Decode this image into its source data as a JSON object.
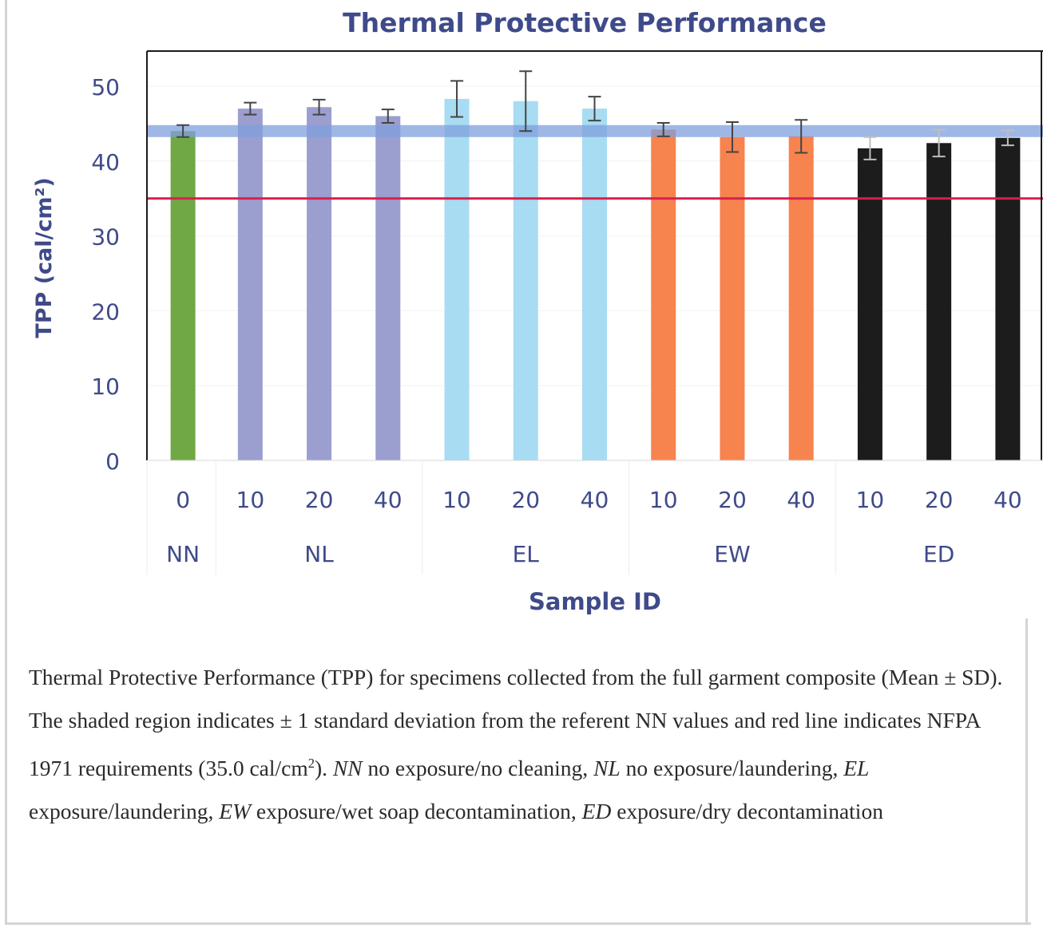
{
  "chart_data": {
    "type": "bar",
    "title": "Thermal Protective Performance",
    "xlabel": "Sample ID",
    "ylabel": "TPP (cal/cm²)",
    "ylim": [
      0,
      50
    ],
    "yticks": [
      0,
      10,
      20,
      30,
      40,
      50
    ],
    "groups": [
      {
        "name": "NN",
        "color": "#70a845",
        "bars": [
          {
            "label": "0",
            "value": 44.0,
            "sd": 0.8
          }
        ]
      },
      {
        "name": "NL",
        "color": "#9a9fcf",
        "bars": [
          {
            "label": "10",
            "value": 47.0,
            "sd": 0.8
          },
          {
            "label": "20",
            "value": 47.2,
            "sd": 1.0
          },
          {
            "label": "40",
            "value": 46.0,
            "sd": 0.9
          }
        ]
      },
      {
        "name": "EL",
        "color": "#a8dcf2",
        "bars": [
          {
            "label": "10",
            "value": 48.3,
            "sd": 2.4
          },
          {
            "label": "20",
            "value": 48.0,
            "sd": 4.0
          },
          {
            "label": "40",
            "value": 47.0,
            "sd": 1.6
          }
        ]
      },
      {
        "name": "EW",
        "color": "#f7834f",
        "bars": [
          {
            "label": "10",
            "value": 44.2,
            "sd": 0.9
          },
          {
            "label": "20",
            "value": 43.2,
            "sd": 2.0
          },
          {
            "label": "40",
            "value": 43.3,
            "sd": 2.2
          }
        ]
      },
      {
        "name": "ED",
        "color": "#1c1c1c",
        "bars": [
          {
            "label": "10",
            "value": 41.7,
            "sd": 1.5
          },
          {
            "label": "20",
            "value": 42.4,
            "sd": 1.8
          },
          {
            "label": "40",
            "value": 43.1,
            "sd": 1.0
          }
        ]
      }
    ],
    "referent_band": {
      "lower": 43.2,
      "upper": 44.8,
      "color": "#7f9fdc"
    },
    "requirement_line": {
      "value": 35.0,
      "color": "#d6204e"
    },
    "colors": {
      "title": "#3f4a8a",
      "axis_text": "#3f4a8a",
      "frame": "#1a1a1a"
    }
  },
  "caption": {
    "segments": [
      {
        "text": "Thermal Protective Performance (TPP) for specimens collected from the full garment composite (Mean ± SD). The shaded region indicates ± 1 standard deviation from the referent NN values and red line indicates NFPA 1971 requirements (35.0 cal/cm",
        "italic": false
      },
      {
        "text": "2",
        "sup": true
      },
      {
        "text": "). ",
        "italic": false
      },
      {
        "text": "NN",
        "italic": true
      },
      {
        "text": " no exposure/no cleaning, ",
        "italic": false
      },
      {
        "text": "NL",
        "italic": true
      },
      {
        "text": " no exposure/laundering, ",
        "italic": false
      },
      {
        "text": "EL",
        "italic": true
      },
      {
        "text": " exposure/laundering, ",
        "italic": false
      },
      {
        "text": "EW",
        "italic": true
      },
      {
        "text": " exposure/wet soap decontamination, ",
        "italic": false
      },
      {
        "text": "ED",
        "italic": true
      },
      {
        "text": " exposure/dry decontamination",
        "italic": false
      }
    ]
  }
}
